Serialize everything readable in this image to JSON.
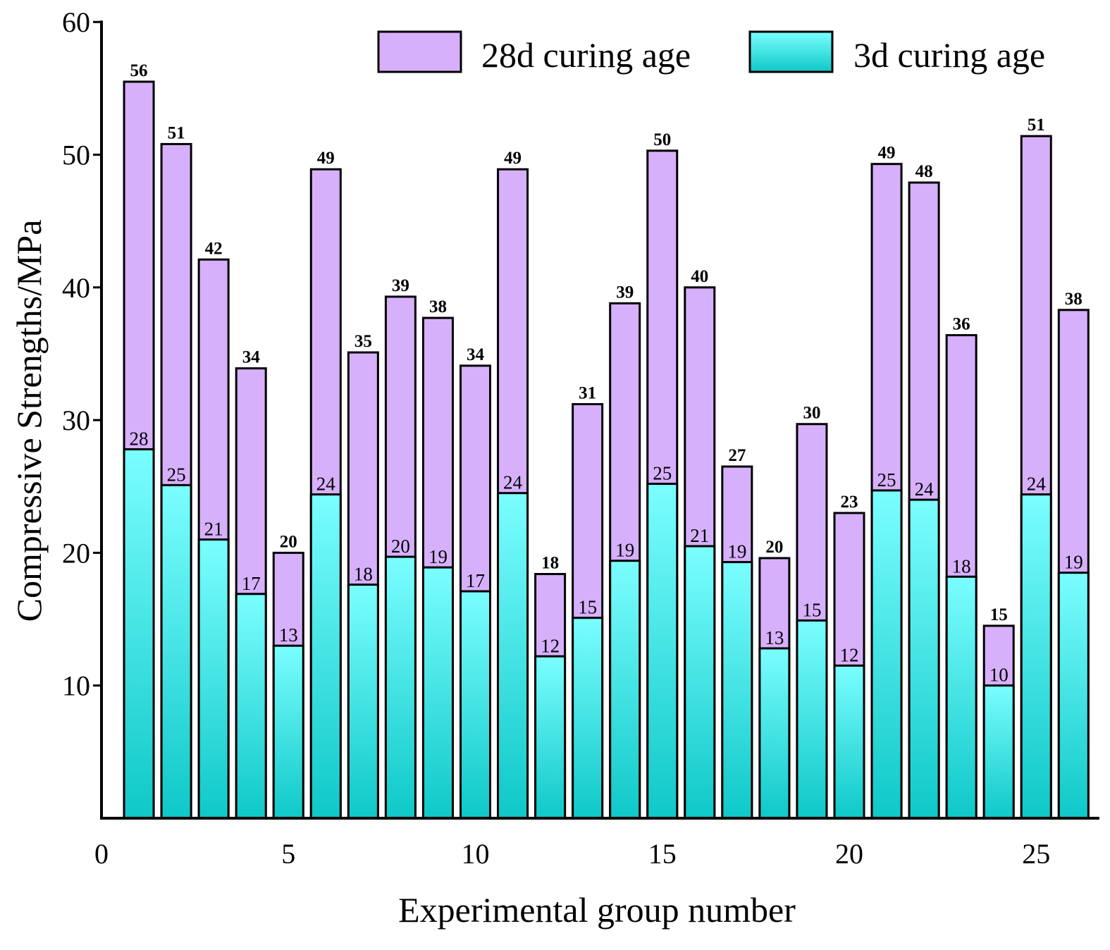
{
  "chart_data": {
    "type": "bar",
    "stacked": false,
    "overlaid": true,
    "xlabel": "Experimental group number",
    "ylabel": "Compressive Strengths/MPa",
    "xlim": [
      0,
      26.5
    ],
    "ylim": [
      0,
      60
    ],
    "xticks": [
      0,
      5,
      10,
      15,
      20,
      25
    ],
    "yticks": [
      10,
      20,
      30,
      40,
      50,
      60
    ],
    "legend_position": "top-right",
    "x": [
      1,
      2,
      3,
      4,
      5,
      6,
      7,
      8,
      9,
      10,
      11,
      12,
      13,
      14,
      15,
      16,
      17,
      18,
      19,
      20,
      21,
      22,
      23,
      24,
      25,
      26
    ],
    "series": [
      {
        "name": "28d curing age",
        "color": "#d7b0fc",
        "values": [
          55.5,
          50.8,
          42.1,
          33.9,
          20.0,
          48.9,
          35.1,
          39.3,
          37.7,
          34.1,
          48.9,
          18.4,
          31.2,
          38.8,
          50.3,
          40.0,
          26.5,
          19.6,
          29.7,
          23.0,
          49.3,
          47.9,
          36.4,
          14.5,
          51.4,
          38.3
        ],
        "labels": [
          "56",
          "51",
          "42",
          "34",
          "20",
          "49",
          "35",
          "39",
          "38",
          "34",
          "49",
          "18",
          "31",
          "39",
          "50",
          "40",
          "27",
          "20",
          "30",
          "23",
          "49",
          "48",
          "36",
          "15",
          "51",
          "38"
        ]
      },
      {
        "name": "3d curing age",
        "color_top": "#7bfeff",
        "color_bottom": "#0fc8c8",
        "values": [
          27.8,
          25.1,
          21.0,
          16.9,
          13.0,
          24.4,
          17.6,
          19.7,
          18.9,
          17.1,
          24.5,
          12.2,
          15.1,
          19.4,
          25.2,
          20.5,
          19.3,
          12.8,
          14.9,
          11.5,
          24.7,
          24.0,
          18.2,
          10.0,
          24.4,
          18.5
        ],
        "labels": [
          "28",
          "25",
          "21",
          "17",
          "13",
          "24",
          "18",
          "20",
          "19",
          "17",
          "24",
          "12",
          "15",
          "19",
          "25",
          "21",
          "19",
          "13",
          "15",
          "12",
          "25",
          "24",
          "18",
          "10",
          "24",
          "19"
        ]
      }
    ]
  }
}
